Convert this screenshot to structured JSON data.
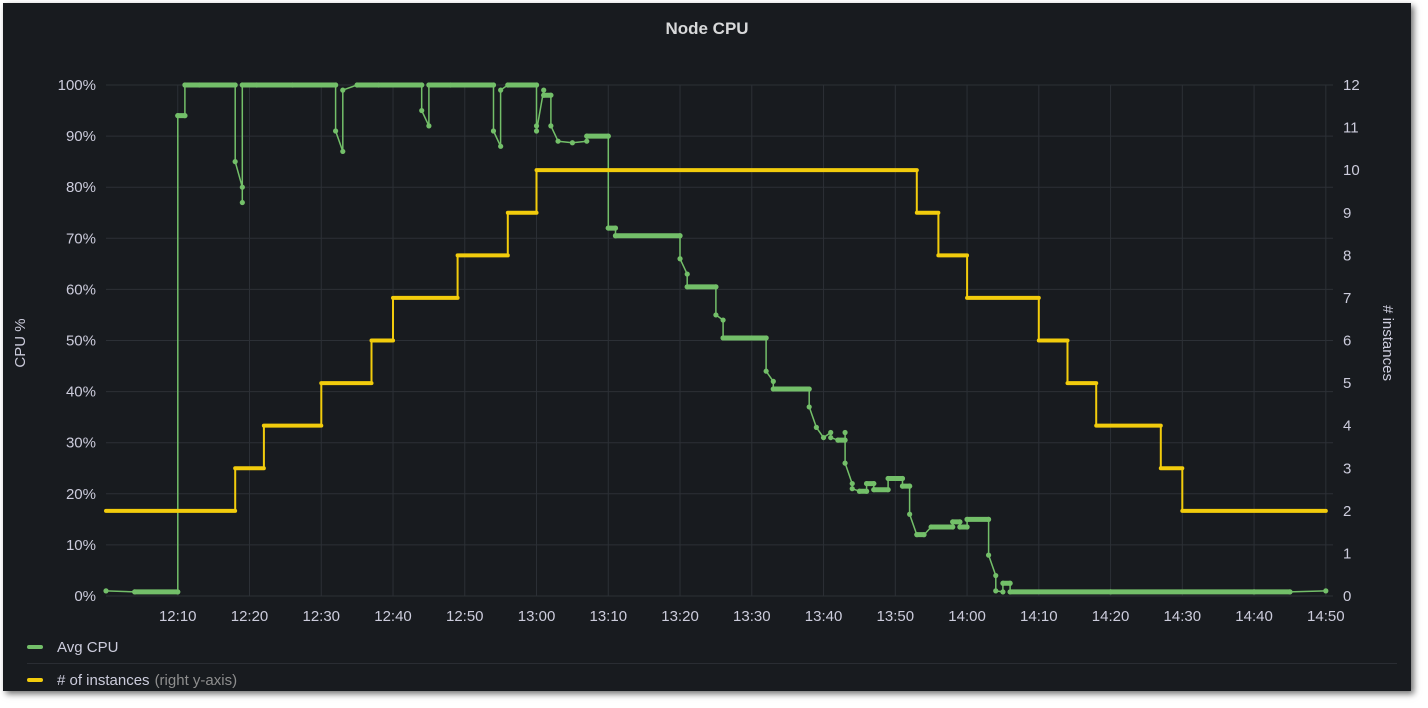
{
  "panel": {
    "title": "Node CPU"
  },
  "colors": {
    "avg_cpu": "#73bf69",
    "instances": "#f2cc0c",
    "grid": "#2c3036",
    "background": "#181b1f"
  },
  "legend": {
    "items": [
      {
        "name": "Avg CPU",
        "note": "",
        "color": "#73bf69"
      },
      {
        "name": "# of instances",
        "note": "(right y-axis)",
        "color": "#f2cc0c"
      }
    ]
  },
  "chart_data": {
    "type": "line",
    "title": "Node CPU",
    "xlabel": "",
    "x_ticks": [
      "12:10",
      "12:20",
      "12:30",
      "12:40",
      "12:50",
      "13:00",
      "13:10",
      "13:20",
      "13:30",
      "13:40",
      "13:50",
      "14:00",
      "14:10",
      "14:20",
      "14:30",
      "14:40",
      "14:50"
    ],
    "xlim": [
      "12:00",
      "14:51"
    ],
    "y_left": {
      "label": "CPU %",
      "ticks": [
        "0%",
        "10%",
        "20%",
        "30%",
        "40%",
        "50%",
        "60%",
        "70%",
        "80%",
        "90%",
        "100%"
      ],
      "lim": [
        0,
        100
      ]
    },
    "y_right": {
      "label": "# instances",
      "ticks": [
        "0",
        "1",
        "2",
        "3",
        "4",
        "5",
        "6",
        "7",
        "8",
        "9",
        "10",
        "11",
        "12"
      ],
      "lim": [
        0,
        12
      ]
    },
    "grid": true,
    "legend_position": "bottom-left",
    "series": [
      {
        "name": "Avg CPU",
        "axis": "left",
        "points": [
          [
            "12:00",
            1
          ],
          [
            "12:04",
            0.8
          ],
          [
            "12:10",
            0.8
          ],
          [
            "12:10",
            94
          ],
          [
            "12:11",
            94
          ],
          [
            "12:11",
            100
          ],
          [
            "12:13",
            100
          ],
          [
            "12:18",
            100
          ],
          [
            "12:18",
            85
          ],
          [
            "12:19",
            80
          ],
          [
            "12:19",
            77
          ],
          [
            "12:19",
            100
          ],
          [
            "12:21",
            100
          ],
          [
            "12:26",
            100
          ],
          [
            "12:32",
            100
          ],
          [
            "12:32",
            91
          ],
          [
            "12:33",
            87
          ],
          [
            "12:33",
            99
          ],
          [
            "12:35",
            100
          ],
          [
            "12:38",
            100
          ],
          [
            "12:44",
            100
          ],
          [
            "12:44",
            95
          ],
          [
            "12:45",
            92
          ],
          [
            "12:45",
            100
          ],
          [
            "12:48",
            100
          ],
          [
            "12:54",
            100
          ],
          [
            "12:54",
            91
          ],
          [
            "12:55",
            88
          ],
          [
            "12:55",
            99
          ],
          [
            "12:56",
            100
          ],
          [
            "13:00",
            100
          ],
          [
            "13:00",
            92
          ],
          [
            "13:00",
            91
          ],
          [
            "13:01",
            99
          ],
          [
            "13:01",
            98
          ],
          [
            "13:02",
            98
          ],
          [
            "13:02",
            92
          ],
          [
            "13:03",
            89
          ],
          [
            "13:05",
            88.7
          ],
          [
            "13:07",
            89
          ],
          [
            "13:07",
            90
          ],
          [
            "13:10",
            90
          ],
          [
            "13:10",
            72
          ],
          [
            "13:11",
            72
          ],
          [
            "13:11",
            70.5
          ],
          [
            "13:20",
            70.5
          ],
          [
            "13:20",
            66
          ],
          [
            "13:21",
            63
          ],
          [
            "13:21",
            60.5
          ],
          [
            "13:25",
            60.5
          ],
          [
            "13:25",
            55
          ],
          [
            "13:26",
            54
          ],
          [
            "13:26",
            50.5
          ],
          [
            "13:30",
            50.5
          ],
          [
            "13:32",
            50.5
          ],
          [
            "13:32",
            44
          ],
          [
            "13:33",
            42
          ],
          [
            "13:33",
            40.5
          ],
          [
            "13:38",
            40.5
          ],
          [
            "13:38",
            37
          ],
          [
            "13:39",
            33
          ],
          [
            "13:40",
            31
          ],
          [
            "13:41",
            32
          ],
          [
            "13:41",
            31
          ],
          [
            "13:42",
            30.5
          ],
          [
            "13:43",
            30.5
          ],
          [
            "13:43",
            32
          ],
          [
            "13:43",
            26
          ],
          [
            "13:44",
            22
          ],
          [
            "13:44",
            21
          ],
          [
            "13:45",
            20.5
          ],
          [
            "13:46",
            20.5
          ],
          [
            "13:46",
            22
          ],
          [
            "13:47",
            22
          ],
          [
            "13:47",
            20.8
          ],
          [
            "13:49",
            20.8
          ],
          [
            "13:49",
            23
          ],
          [
            "13:51",
            23
          ],
          [
            "13:51",
            21.5
          ],
          [
            "13:52",
            21.5
          ],
          [
            "13:52",
            16
          ],
          [
            "13:53",
            12
          ],
          [
            "13:54",
            12
          ],
          [
            "13:55",
            13.5
          ],
          [
            "13:58",
            13.5
          ],
          [
            "13:58",
            14.5
          ],
          [
            "13:59",
            14.5
          ],
          [
            "13:59",
            13.5
          ],
          [
            "14:00",
            13.5
          ],
          [
            "14:00",
            15
          ],
          [
            "14:03",
            15
          ],
          [
            "14:03",
            8
          ],
          [
            "14:04",
            4
          ],
          [
            "14:04",
            1
          ],
          [
            "14:05",
            0.8
          ],
          [
            "14:05",
            2.5
          ],
          [
            "14:06",
            2.5
          ],
          [
            "14:06",
            0.8
          ],
          [
            "14:20",
            0.8
          ],
          [
            "14:40",
            0.8
          ],
          [
            "14:45",
            0.8
          ],
          [
            "14:50",
            1
          ]
        ]
      },
      {
        "name": "# of instances",
        "axis": "right",
        "points": [
          [
            "12:00",
            2
          ],
          [
            "12:18",
            2
          ],
          [
            "12:18",
            3
          ],
          [
            "12:22",
            3
          ],
          [
            "12:22",
            4
          ],
          [
            "12:30",
            4
          ],
          [
            "12:30",
            5
          ],
          [
            "12:37",
            5
          ],
          [
            "12:37",
            6
          ],
          [
            "12:40",
            6
          ],
          [
            "12:40",
            7
          ],
          [
            "12:49",
            7
          ],
          [
            "12:49",
            8
          ],
          [
            "12:56",
            8
          ],
          [
            "12:56",
            9
          ],
          [
            "13:00",
            9
          ],
          [
            "13:00",
            10
          ],
          [
            "13:53",
            10
          ],
          [
            "13:53",
            9
          ],
          [
            "13:56",
            9
          ],
          [
            "13:56",
            8
          ],
          [
            "14:00",
            8
          ],
          [
            "14:00",
            7
          ],
          [
            "14:10",
            7
          ],
          [
            "14:10",
            6
          ],
          [
            "14:14",
            6
          ],
          [
            "14:14",
            5
          ],
          [
            "14:18",
            5
          ],
          [
            "14:18",
            4
          ],
          [
            "14:27",
            4
          ],
          [
            "14:27",
            3
          ],
          [
            "14:30",
            3
          ],
          [
            "14:30",
            2
          ],
          [
            "14:50",
            2
          ]
        ]
      }
    ]
  }
}
